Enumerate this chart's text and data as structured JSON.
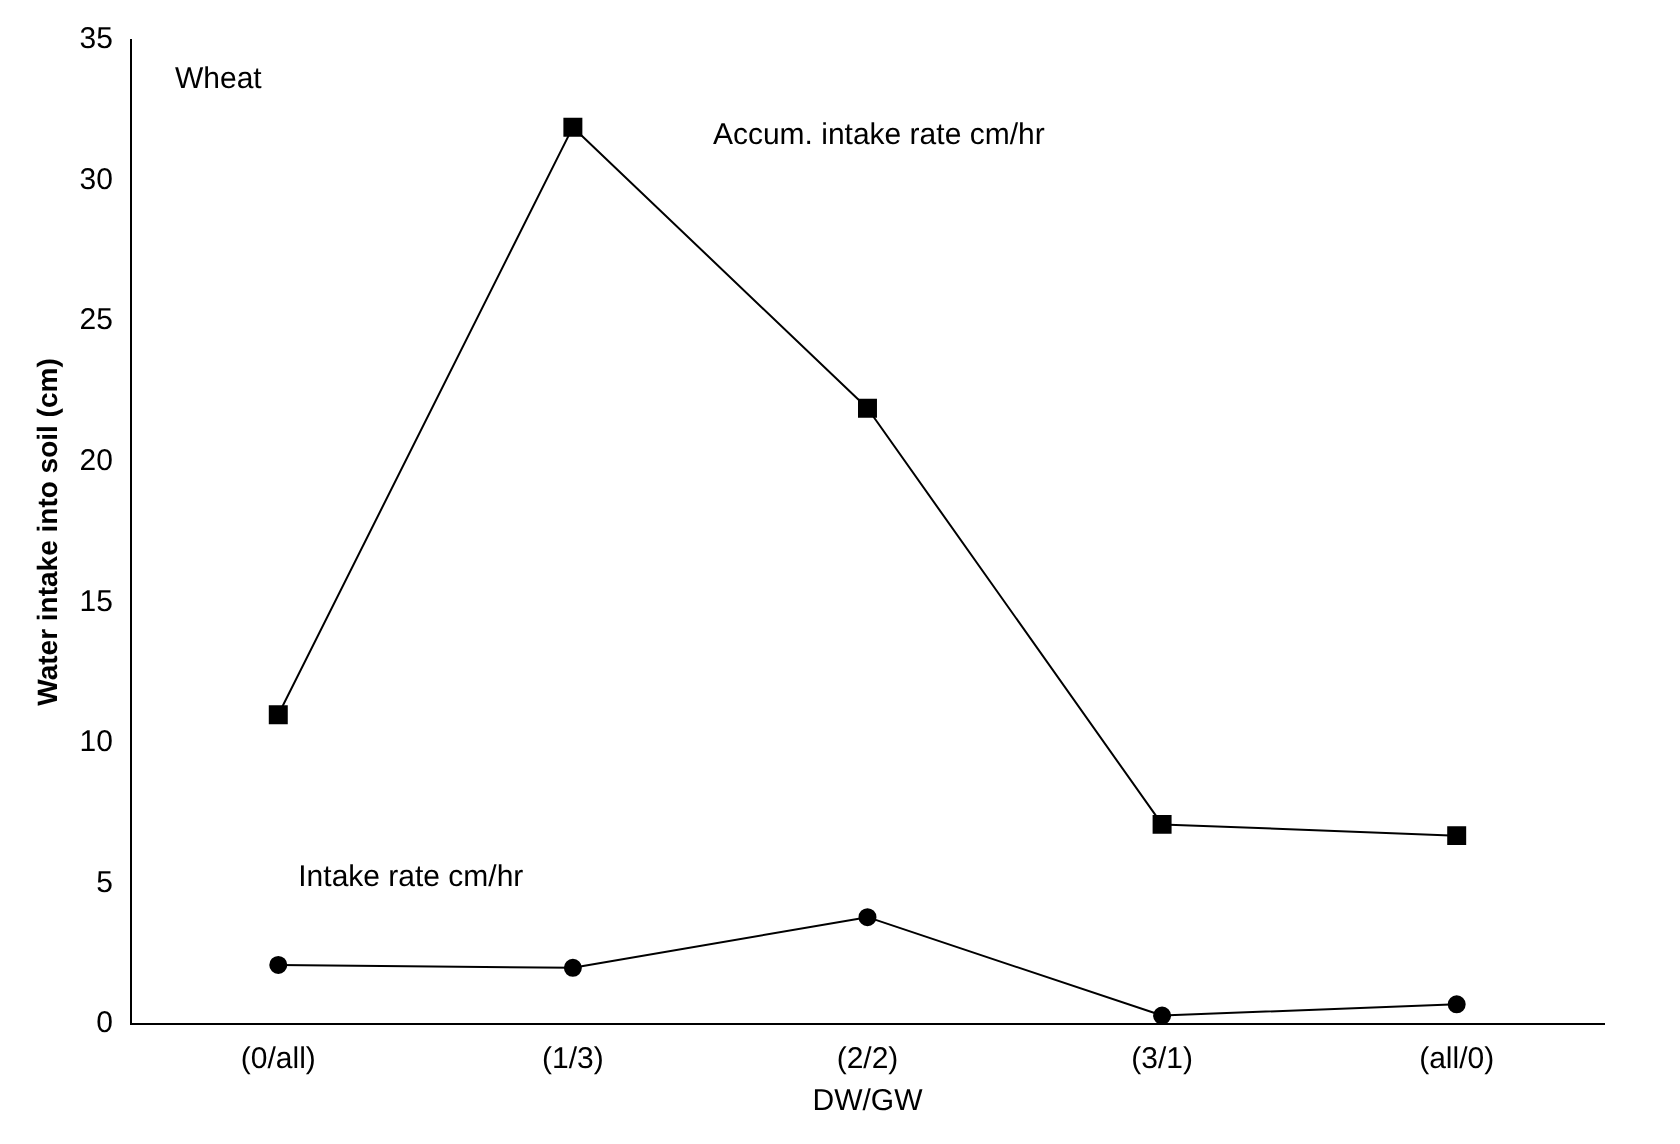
{
  "chart_data": {
    "type": "line",
    "xlabel": "DW/GW",
    "ylabel": "Water intake into soil (cm)",
    "categories": [
      "(0/all)",
      "(1/3)",
      "(2/2)",
      "(3/1)",
      "(all/0)"
    ],
    "series": [
      {
        "name": "Accum. intake rate cm/hr",
        "color": "#000000",
        "marker": "square",
        "values": [
          11,
          31.9,
          21.9,
          7.1,
          6.7
        ]
      },
      {
        "name": "Intake rate cm/hr",
        "color": "#000000",
        "marker": "circle",
        "values": [
          2.1,
          2.0,
          3.8,
          0.3,
          0.7
        ]
      }
    ],
    "ylim": [
      0,
      35
    ],
    "yticks": [
      0,
      5,
      10,
      15,
      20,
      25,
      30,
      35
    ],
    "grid": false,
    "legend": false,
    "line_style": "solid",
    "annotations": [
      "Wheat"
    ]
  }
}
